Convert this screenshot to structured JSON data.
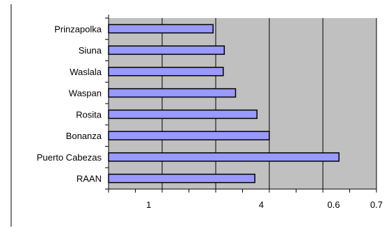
{
  "chart_data": {
    "type": "bar",
    "orientation": "horizontal",
    "title": "",
    "xlabel": "",
    "ylabel": "",
    "categories": [
      "Prinzapolka",
      "Siuna",
      "Waslala",
      "Waspan",
      "Rosita",
      "Bonanza",
      "Puerto Cabezas",
      "RAAN"
    ],
    "values": [
      0.395,
      0.416,
      0.414,
      0.437,
      0.477,
      0.5,
      0.63,
      0.473
    ],
    "x_tick_labels": [
      "1",
      "4",
      "0.6",
      "0.7"
    ],
    "xlim": [
      0.2,
      0.7
    ],
    "grid": true,
    "legend": "none",
    "colors": {
      "bar_fill": "#9999ff",
      "bar_stroke": "#000000",
      "plot_background": "#c0c0c0",
      "gridline": "#000000"
    }
  }
}
